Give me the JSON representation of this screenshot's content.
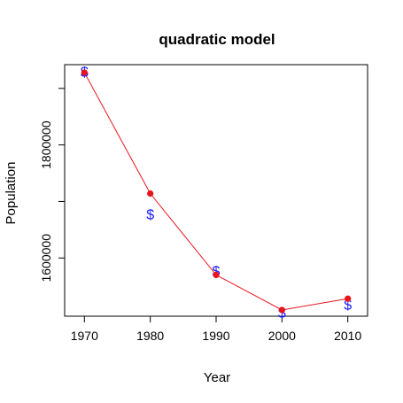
{
  "chart_data": {
    "type": "line",
    "title": "quadratic model",
    "xlabel": "Year",
    "ylabel": "Population",
    "xlim": [
      1967,
      2013
    ],
    "ylim": [
      1497000,
      1942000
    ],
    "x_ticks": [
      1970,
      1980,
      1990,
      2000,
      2010
    ],
    "x_tick_labels": [
      "1970",
      "1980",
      "1990",
      "2000",
      "2010"
    ],
    "y_ticks": [
      1600000,
      1800000
    ],
    "y_tick_labels": [
      "1600000",
      "1800000"
    ],
    "series": [
      {
        "role": "fitted",
        "x": [
          1970,
          1980,
          1990,
          2000,
          2010
        ],
        "y": [
          1928000,
          1714000,
          1570000,
          1508000,
          1528000
        ],
        "marker": "circle",
        "line": true
      },
      {
        "role": "observed",
        "x": [
          1970,
          1980,
          1990,
          2000,
          2010
        ],
        "y": [
          1930000,
          1678000,
          1578000,
          1504000,
          1518000
        ],
        "marker": "$",
        "line": false
      }
    ],
    "grid": false,
    "colors": {
      "fitted": "#e8141c",
      "observed": "#1a1aff",
      "axes": "#000000"
    }
  }
}
